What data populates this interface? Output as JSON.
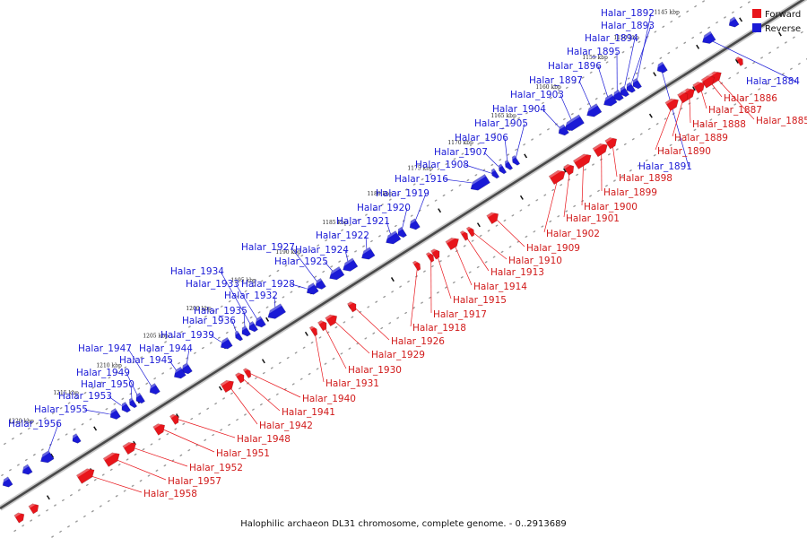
{
  "caption": "Halophilic archaeon DL31 chromosome, complete genome. - 0..2913689",
  "legend": {
    "forward": {
      "label": "Forward",
      "color": "#e8151b"
    },
    "reverse": {
      "label": "Reverse",
      "color": "#1a1ad6"
    }
  },
  "ticks": [
    "1145 kbp",
    "1150 kbp",
    "1155 kbp",
    "1160 kbp",
    "1165 kbp",
    "1170 kbp",
    "1175 kbp",
    "1180 kbp",
    "1185 kbp",
    "1190 kbp",
    "1195 kbp",
    "1200 kbp",
    "1205 kbp",
    "1210 kbp",
    "1215 kbp",
    "1220 kbp"
  ],
  "reverse_genes": [
    "Halar_1884",
    "Halar_1891",
    "Halar_1892",
    "Halar_1893",
    "Halar_1894",
    "Halar_1895",
    "Halar_1896",
    "Halar_1897",
    "Halar_1903",
    "Halar_1904",
    "Halar_1905",
    "Halar_1906",
    "Halar_1907",
    "Halar_1908",
    "Halar_1916",
    "Halar_1919",
    "Halar_1920",
    "Halar_1921",
    "Halar_1922",
    "Halar_1924",
    "Halar_1925",
    "Halar_1927",
    "Halar_1928",
    "Halar_1932",
    "Halar_1933",
    "Halar_1934",
    "Halar_1935",
    "Halar_1936",
    "Halar_1939",
    "Halar_1944",
    "Halar_1945",
    "Halar_1947",
    "Halar_1949",
    "Halar_1950",
    "Halar_1953",
    "Halar_1955",
    "Halar_1956"
  ],
  "forward_genes": [
    "Halar_1885",
    "Halar_1886",
    "Halar_1887",
    "Halar_1888",
    "Halar_1889",
    "Halar_1890",
    "Halar_1898",
    "Halar_1899",
    "Halar_1900",
    "Halar_1901",
    "Halar_1902",
    "Halar_1909",
    "Halar_1910",
    "Halar_1913",
    "Halar_1914",
    "Halar_1915",
    "Halar_1917",
    "Halar_1918",
    "Halar_1926",
    "Halar_1929",
    "Halar_1930",
    "Halar_1931",
    "Halar_1940",
    "Halar_1941",
    "Halar_1942",
    "Halar_1948",
    "Halar_1951",
    "Halar_1952",
    "Halar_1957",
    "Halar_1958"
  ]
}
